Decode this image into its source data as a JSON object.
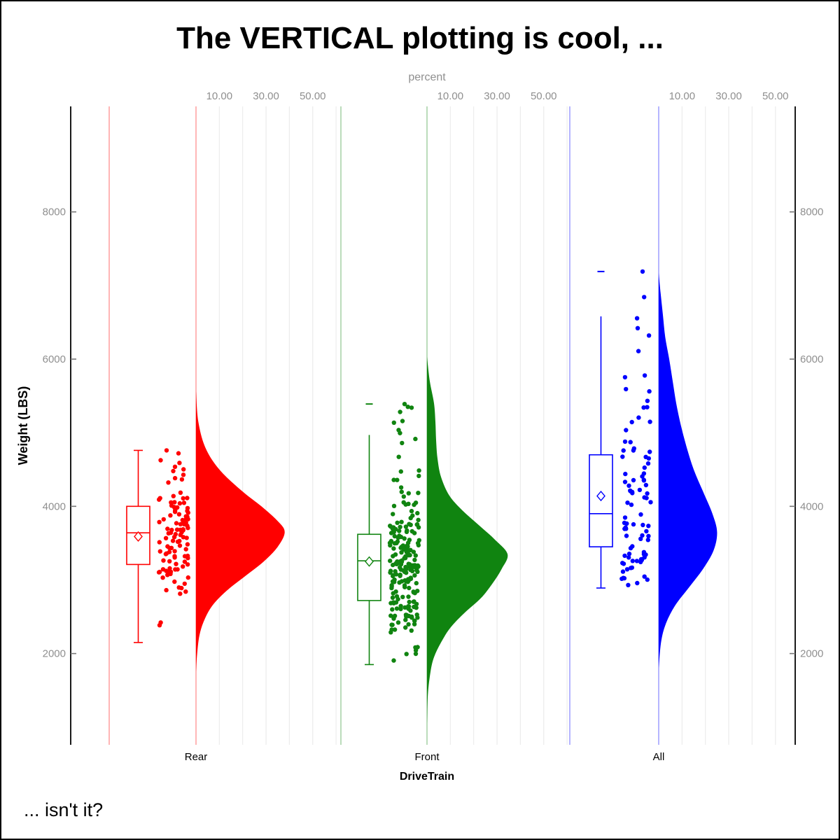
{
  "title": "The VERTICAL plotting is cool, ...",
  "caption": "... isn't it?",
  "axes": {
    "top": {
      "label": "percent",
      "tick_values": [
        10,
        30,
        50
      ],
      "tick_labels": [
        "10.00",
        "30.00",
        "50.00"
      ],
      "gridline_percents": [
        10,
        20,
        30,
        40,
        50,
        60
      ],
      "text_color": "#8f8f8f",
      "gridline_color": "#ececec"
    },
    "left": {
      "label": "Weight (LBS)",
      "tick_values": [
        2000,
        4000,
        6000,
        8000
      ],
      "tick_labels": [
        "2000",
        "4000",
        "6000",
        "8000"
      ],
      "text_color": "#8f8f8f"
    },
    "right": {
      "tick_values": [
        2000,
        4000,
        6000,
        8000
      ],
      "tick_labels": [
        "2000",
        "4000",
        "6000",
        "8000"
      ],
      "text_color": "#8f8f8f"
    },
    "bottom": {
      "label": "DriveTrain",
      "categories": [
        "Rear",
        "Front",
        "All"
      ],
      "text_color": "#000000"
    }
  },
  "chart_data": {
    "type": "raincloud (box + jitter strip + half violin), vertical orientation",
    "x_variable": "DriveTrain",
    "y_variable": "Weight (LBS)",
    "density_axis": {
      "label": "percent",
      "range": [
        0,
        60
      ],
      "shown_ticks": [
        10,
        30,
        50
      ]
    },
    "y_axis": {
      "range_ticks": [
        2000,
        4000,
        6000,
        8000
      ]
    },
    "groups": [
      {
        "name": "Rear",
        "color": "#FF0000",
        "n": 110,
        "data_min": 2150,
        "data_max": 4760,
        "box": {
          "whisker_low": 2150,
          "q1": 3210,
          "median": 3640,
          "mean": 3590,
          "q3": 4000,
          "whisker_high": 4760,
          "high_cap": true,
          "max_dash": null
        },
        "violin_profile_value_percent": [
          [
            5560,
            0
          ],
          [
            5150,
            1
          ],
          [
            4800,
            4
          ],
          [
            4500,
            10
          ],
          [
            4200,
            20
          ],
          [
            4000,
            28
          ],
          [
            3800,
            35
          ],
          [
            3650,
            38
          ],
          [
            3450,
            35
          ],
          [
            3250,
            29
          ],
          [
            3050,
            21
          ],
          [
            2850,
            13
          ],
          [
            2650,
            7
          ],
          [
            2450,
            3.5
          ],
          [
            2250,
            1.5
          ],
          [
            2000,
            0.5
          ],
          [
            1750,
            0
          ]
        ],
        "jitter_seed": 7,
        "fixed_points": [
          [
            4760,
            -42
          ],
          [
            4720,
            -25
          ]
        ]
      },
      {
        "name": "Front",
        "color": "#108410",
        "n": 226,
        "data_min": 1850,
        "data_max": 5390,
        "box": {
          "whisker_low": 1850,
          "q1": 2720,
          "median": 3260,
          "mean": 3250,
          "q3": 3620,
          "whisker_high": 4970,
          "high_cap": false,
          "max_dash": 5390
        },
        "violin_profile_value_percent": [
          [
            6030,
            0
          ],
          [
            5700,
            1.2
          ],
          [
            5400,
            3
          ],
          [
            5150,
            3.6
          ],
          [
            4900,
            3.9
          ],
          [
            4650,
            4.5
          ],
          [
            4400,
            6
          ],
          [
            4150,
            9.5
          ],
          [
            3950,
            15
          ],
          [
            3750,
            22
          ],
          [
            3550,
            29
          ],
          [
            3350,
            34.5
          ],
          [
            3150,
            32
          ],
          [
            2950,
            28
          ],
          [
            2750,
            23
          ],
          [
            2550,
            16
          ],
          [
            2350,
            10
          ],
          [
            2150,
            6
          ],
          [
            1950,
            3
          ],
          [
            1750,
            1.5
          ],
          [
            1450,
            0.4
          ],
          [
            1040,
            0
          ]
        ],
        "jitter_seed": 11,
        "fixed_points": [
          [
            5390,
            -32
          ],
          [
            5340,
            -22
          ]
        ]
      },
      {
        "name": "All",
        "color": "#0000FF",
        "n": 92,
        "data_min": 2890,
        "data_max": 7190,
        "box": {
          "whisker_low": 2890,
          "q1": 3450,
          "median": 3900,
          "mean": 4140,
          "q3": 4700,
          "whisker_high": 6580,
          "high_cap": false,
          "max_dash": 7190
        },
        "violin_profile_value_percent": [
          [
            7170,
            0
          ],
          [
            6900,
            0.8
          ],
          [
            6600,
            1.8
          ],
          [
            6300,
            2.8
          ],
          [
            6000,
            4.5
          ],
          [
            5700,
            6
          ],
          [
            5400,
            7.5
          ],
          [
            5100,
            9.5
          ],
          [
            4800,
            12
          ],
          [
            4500,
            15
          ],
          [
            4200,
            19
          ],
          [
            3900,
            23
          ],
          [
            3650,
            25
          ],
          [
            3400,
            23.5
          ],
          [
            3150,
            19
          ],
          [
            2900,
            13
          ],
          [
            2650,
            7
          ],
          [
            2400,
            3
          ],
          [
            2150,
            1
          ],
          [
            1800,
            0
          ]
        ],
        "jitter_seed": 13,
        "fixed_points": [
          [
            7190,
            -23
          ],
          [
            6420,
            -30
          ]
        ]
      }
    ]
  },
  "style": {
    "axis_line_color": "#000000",
    "tick_mark_color": "#777777",
    "category_line_opacity": 0.38,
    "gridline_color": "#ececec",
    "title_color": "#000000",
    "caption_color": "#000000"
  }
}
